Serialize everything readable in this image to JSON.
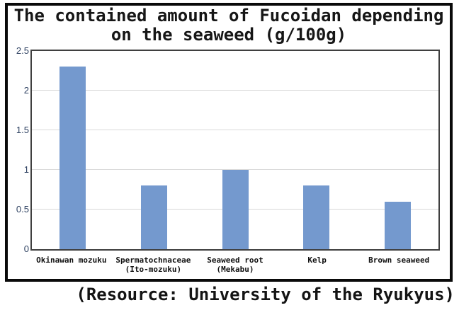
{
  "chart_data": {
    "type": "bar",
    "title": "The contained amount of Fucoidan depending on the seaweed (g/100g)",
    "title_lines": [
      "The contained amount of Fucoidan depending",
      "on the seaweed (g/100g)"
    ],
    "categories": [
      "Okinawan mozuku",
      "Spermatochnaceae\n(Ito-mozuku)",
      "Seaweed root\n(Mekabu)",
      "Kelp",
      "Brown seaweed"
    ],
    "values": [
      2.3,
      0.8,
      1.0,
      0.8,
      0.6
    ],
    "unit": "g/100g",
    "xlabel": "",
    "ylabel": "",
    "ylim": [
      0,
      2.5
    ],
    "yticks": [
      0,
      0.5,
      1,
      1.5,
      2,
      2.5
    ],
    "grid": true,
    "legend": false,
    "bar_color": "#7499CE",
    "gridline_color": "#d9d9d9",
    "plot_border_color": "#3f3f3f",
    "frame_border_color": "#0a0a0a",
    "tick_label_color": "#2f4262"
  },
  "footer": {
    "resource_note": "(Resource: University of the Ryukyus)"
  }
}
